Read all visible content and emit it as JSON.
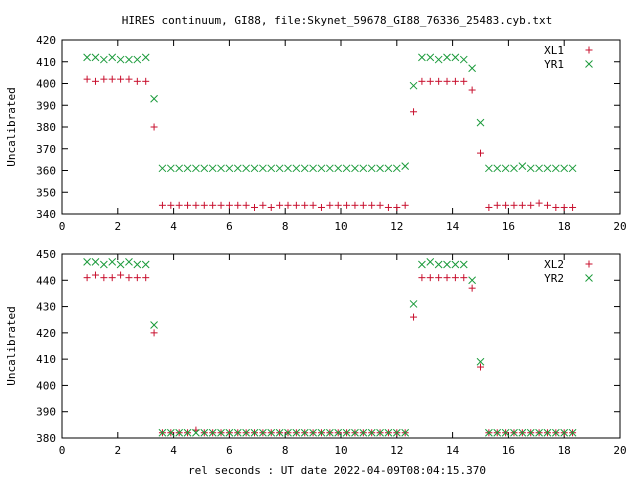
{
  "title": "HIRES continuum, GI88, file:Skynet_59678_GI88_76336_25483.cyb.txt",
  "xlabel": "rel seconds : UT date 2022-04-09T08:04:15.370",
  "colors": {
    "XL": "#c8102e",
    "YR": "#1a9a3a"
  },
  "chart_data": [
    {
      "type": "scatter",
      "ylabel": "Uncalibrated",
      "xlim": [
        0,
        20
      ],
      "ylim": [
        340,
        420
      ],
      "xticks": [
        0,
        2,
        4,
        6,
        8,
        10,
        12,
        14,
        16,
        18,
        20
      ],
      "yticks": [
        340,
        350,
        360,
        370,
        380,
        390,
        400,
        410,
        420
      ],
      "legend": "top-right",
      "series": [
        {
          "name": "XL1",
          "marker": "plus",
          "x": [
            0.9,
            1.2,
            1.5,
            1.8,
            2.1,
            2.4,
            2.7,
            3.0,
            3.3,
            3.6,
            3.9,
            4.2,
            4.5,
            4.8,
            5.1,
            5.4,
            5.7,
            6.0,
            6.3,
            6.6,
            6.9,
            7.2,
            7.5,
            7.8,
            8.1,
            8.4,
            8.7,
            9.0,
            9.3,
            9.6,
            9.9,
            10.2,
            10.5,
            10.8,
            11.1,
            11.4,
            11.7,
            12.0,
            12.3,
            12.6,
            12.9,
            13.2,
            13.5,
            13.8,
            14.1,
            14.4,
            14.7,
            15.0,
            15.3,
            15.6,
            15.9,
            16.2,
            16.5,
            16.8,
            17.1,
            17.4,
            17.7,
            18.0,
            18.3
          ],
          "y": [
            402,
            401,
            402,
            402,
            402,
            402,
            401,
            401,
            380,
            344,
            344,
            344,
            344,
            344,
            344,
            344,
            344,
            344,
            344,
            344,
            343,
            344,
            343,
            344,
            344,
            344,
            344,
            344,
            343,
            344,
            344,
            344,
            344,
            344,
            344,
            344,
            343,
            343,
            344,
            387,
            401,
            401,
            401,
            401,
            401,
            401,
            397,
            368,
            343,
            344,
            344,
            344,
            344,
            344,
            345,
            344,
            343,
            343,
            343
          ]
        },
        {
          "name": "YR1",
          "marker": "x",
          "x": [
            0.9,
            1.2,
            1.5,
            1.8,
            2.1,
            2.4,
            2.7,
            3.0,
            3.3,
            3.6,
            3.9,
            4.2,
            4.5,
            4.8,
            5.1,
            5.4,
            5.7,
            6.0,
            6.3,
            6.6,
            6.9,
            7.2,
            7.5,
            7.8,
            8.1,
            8.4,
            8.7,
            9.0,
            9.3,
            9.6,
            9.9,
            10.2,
            10.5,
            10.8,
            11.1,
            11.4,
            11.7,
            12.0,
            12.3,
            12.6,
            12.9,
            13.2,
            13.5,
            13.8,
            14.1,
            14.4,
            14.7,
            15.0,
            15.3,
            15.6,
            15.9,
            16.2,
            16.5,
            16.8,
            17.1,
            17.4,
            17.7,
            18.0,
            18.3
          ],
          "y": [
            412,
            412,
            411,
            412,
            411,
            411,
            411,
            412,
            393,
            361,
            361,
            361,
            361,
            361,
            361,
            361,
            361,
            361,
            361,
            361,
            361,
            361,
            361,
            361,
            361,
            361,
            361,
            361,
            361,
            361,
            361,
            361,
            361,
            361,
            361,
            361,
            361,
            361,
            362,
            399,
            412,
            412,
            411,
            412,
            412,
            411,
            407,
            382,
            361,
            361,
            361,
            361,
            362,
            361,
            361,
            361,
            361,
            361,
            361
          ]
        }
      ]
    },
    {
      "type": "scatter",
      "ylabel": "Uncalibrated",
      "xlim": [
        0,
        20
      ],
      "ylim": [
        380,
        450
      ],
      "xticks": [
        0,
        2,
        4,
        6,
        8,
        10,
        12,
        14,
        16,
        18,
        20
      ],
      "yticks": [
        380,
        390,
        400,
        410,
        420,
        430,
        440,
        450
      ],
      "legend": "top-right",
      "series": [
        {
          "name": "XL2",
          "marker": "plus",
          "x": [
            0.9,
            1.2,
            1.5,
            1.8,
            2.1,
            2.4,
            2.7,
            3.0,
            3.3,
            3.6,
            3.9,
            4.2,
            4.5,
            4.8,
            5.1,
            5.4,
            5.7,
            6.0,
            6.3,
            6.6,
            6.9,
            7.2,
            7.5,
            7.8,
            8.1,
            8.4,
            8.7,
            9.0,
            9.3,
            9.6,
            9.9,
            10.2,
            10.5,
            10.8,
            11.1,
            11.4,
            11.7,
            12.0,
            12.3,
            12.6,
            12.9,
            13.2,
            13.5,
            13.8,
            14.1,
            14.4,
            14.7,
            15.0,
            15.3,
            15.6,
            15.9,
            16.2,
            16.5,
            16.8,
            17.1,
            17.4,
            17.7,
            18.0,
            18.3
          ],
          "y": [
            441,
            442,
            441,
            441,
            442,
            441,
            441,
            441,
            420,
            382,
            382,
            382,
            382,
            383,
            382,
            382,
            382,
            382,
            382,
            382,
            382,
            382,
            382,
            382,
            382,
            382,
            382,
            382,
            382,
            382,
            382,
            382,
            382,
            382,
            382,
            382,
            382,
            382,
            382,
            426,
            441,
            441,
            441,
            441,
            441,
            441,
            437,
            407,
            382,
            382,
            382,
            382,
            382,
            382,
            382,
            382,
            382,
            382,
            382
          ]
        },
        {
          "name": "YR2",
          "marker": "x",
          "x": [
            0.9,
            1.2,
            1.5,
            1.8,
            2.1,
            2.4,
            2.7,
            3.0,
            3.3,
            3.6,
            3.9,
            4.2,
            4.5,
            4.8,
            5.1,
            5.4,
            5.7,
            6.0,
            6.3,
            6.6,
            6.9,
            7.2,
            7.5,
            7.8,
            8.1,
            8.4,
            8.7,
            9.0,
            9.3,
            9.6,
            9.9,
            10.2,
            10.5,
            10.8,
            11.1,
            11.4,
            11.7,
            12.0,
            12.3,
            12.6,
            12.9,
            13.2,
            13.5,
            13.8,
            14.1,
            14.4,
            14.7,
            15.0,
            15.3,
            15.6,
            15.9,
            16.2,
            16.5,
            16.8,
            17.1,
            17.4,
            17.7,
            18.0,
            18.3
          ],
          "y": [
            447,
            447,
            446,
            447,
            446,
            447,
            446,
            446,
            423,
            382,
            382,
            382,
            382,
            382,
            382,
            382,
            382,
            382,
            382,
            382,
            382,
            382,
            382,
            382,
            382,
            382,
            382,
            382,
            382,
            382,
            382,
            382,
            382,
            382,
            382,
            382,
            382,
            382,
            382,
            431,
            446,
            447,
            446,
            446,
            446,
            446,
            440,
            409,
            382,
            382,
            382,
            382,
            382,
            382,
            382,
            382,
            382,
            382,
            382
          ]
        }
      ]
    }
  ]
}
